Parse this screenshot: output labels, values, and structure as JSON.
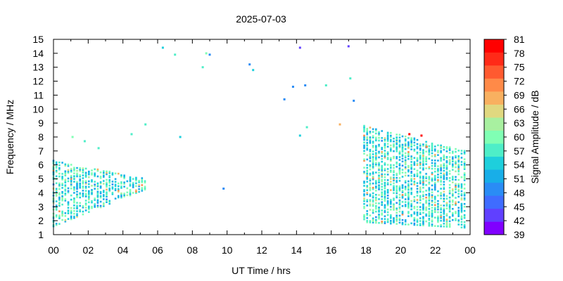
{
  "chart_data": {
    "type": "heatmap",
    "title": "2025-07-03",
    "xlabel": "UT Time / hrs",
    "ylabel": "Frequency / MHz",
    "x_tick_labels": [
      "00",
      "02",
      "04",
      "06",
      "08",
      "10",
      "12",
      "14",
      "16",
      "18",
      "20",
      "22",
      "00"
    ],
    "y_tick_labels": [
      "1",
      "2",
      "3",
      "4",
      "5",
      "6",
      "7",
      "8",
      "9",
      "10",
      "11",
      "12",
      "13",
      "14",
      "15"
    ],
    "xlim_hours": [
      0,
      24
    ],
    "ylim_mhz": [
      1,
      15
    ],
    "colorbar": {
      "label": "Signal Amplitude / dB",
      "tick_labels": [
        "39",
        "42",
        "45",
        "48",
        "51",
        "54",
        "57",
        "60",
        "63",
        "66",
        "69",
        "72",
        "75",
        "78",
        "81"
      ],
      "range_db": [
        39,
        81
      ],
      "colors": [
        "#8000ff",
        "#6040ff",
        "#3f6cff",
        "#2a8cf5",
        "#18aee8",
        "#1ecfdc",
        "#4eeec8",
        "#80ffb4",
        "#a8f0a0",
        "#e0d880",
        "#f8b060",
        "#ff8a48",
        "#ff5a30",
        "#ff2a18",
        "#ff0000"
      ]
    },
    "clusters": [
      {
        "name": "night-early",
        "x_range_hours": [
          0.0,
          5.4
        ],
        "y_low_mhz_at_start": 1.6,
        "y_high_mhz_at_start": 6.3,
        "y_low_mhz_at_end": 4.3,
        "y_high_mhz_at_end": 5.0,
        "typical_db": 56
      },
      {
        "name": "night-late",
        "x_range_hours": [
          17.9,
          23.7
        ],
        "y_low_mhz_at_start": 1.9,
        "y_high_mhz_at_start": 8.8,
        "y_low_mhz_at_end": 1.5,
        "y_high_mhz_at_end": 7.0,
        "typical_db": 56
      }
    ],
    "scattered_points": [
      {
        "x": 1.1,
        "y": 8.0,
        "db": 60
      },
      {
        "x": 1.8,
        "y": 7.7,
        "db": 58
      },
      {
        "x": 2.6,
        "y": 7.2,
        "db": 58
      },
      {
        "x": 4.5,
        "y": 8.2,
        "db": 57
      },
      {
        "x": 5.3,
        "y": 8.9,
        "db": 58
      },
      {
        "x": 6.3,
        "y": 14.4,
        "db": 54
      },
      {
        "x": 7.0,
        "y": 13.9,
        "db": 57
      },
      {
        "x": 7.3,
        "y": 8.0,
        "db": 54
      },
      {
        "x": 8.6,
        "y": 13.0,
        "db": 58
      },
      {
        "x": 8.8,
        "y": 14.0,
        "db": 60
      },
      {
        "x": 9.0,
        "y": 13.9,
        "db": 48
      },
      {
        "x": 9.8,
        "y": 4.3,
        "db": 50
      },
      {
        "x": 11.3,
        "y": 13.2,
        "db": 48
      },
      {
        "x": 11.5,
        "y": 12.8,
        "db": 54
      },
      {
        "x": 13.3,
        "y": 10.7,
        "db": 50
      },
      {
        "x": 13.8,
        "y": 11.6,
        "db": 48
      },
      {
        "x": 14.2,
        "y": 14.4,
        "db": 42
      },
      {
        "x": 14.2,
        "y": 8.1,
        "db": 53
      },
      {
        "x": 14.5,
        "y": 11.7,
        "db": 48
      },
      {
        "x": 14.6,
        "y": 8.7,
        "db": 57
      },
      {
        "x": 15.7,
        "y": 11.7,
        "db": 57
      },
      {
        "x": 16.5,
        "y": 8.9,
        "db": 68
      },
      {
        "x": 17.0,
        "y": 14.5,
        "db": 44
      },
      {
        "x": 17.1,
        "y": 12.2,
        "db": 57
      },
      {
        "x": 17.3,
        "y": 10.6,
        "db": 48
      },
      {
        "x": 20.5,
        "y": 8.2,
        "db": 80
      },
      {
        "x": 21.2,
        "y": 8.1,
        "db": 79
      },
      {
        "x": 21.5,
        "y": 7.3,
        "db": 72
      }
    ]
  }
}
